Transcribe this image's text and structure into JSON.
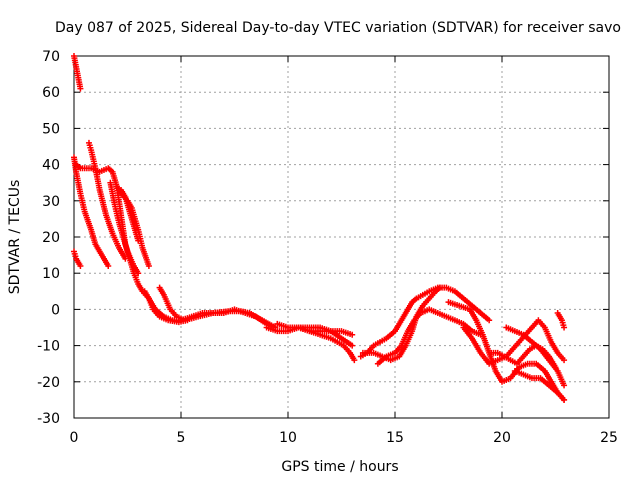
{
  "chart_data": {
    "type": "scatter",
    "title": "Day 087 of 2025, Sidereal Day-to-day VTEC variation (SDTVAR) for receiver savo",
    "xlabel": "GPS time / hours",
    "ylabel": "SDTVAR / TECUs",
    "xlim": [
      0,
      25
    ],
    "ylim": [
      -30,
      70
    ],
    "x_ticks": [
      "0",
      "5",
      "10",
      "15",
      "20",
      "25"
    ],
    "y_ticks": [
      "70",
      "60",
      "50",
      "40",
      "30",
      "20",
      "10",
      "0",
      "-10",
      "-20",
      "-30"
    ],
    "grid": true,
    "marker": "+",
    "color": "#ff0000",
    "series": [
      {
        "name": "s1",
        "x": [
          0.0,
          0.1,
          0.2,
          0.3
        ],
        "y": [
          70,
          67,
          64,
          61
        ]
      },
      {
        "name": "s2",
        "x": [
          0.0,
          0.1,
          0.2,
          0.3
        ],
        "y": [
          16,
          14,
          13,
          12
        ]
      },
      {
        "name": "s3",
        "x": [
          0.0,
          0.1,
          0.3,
          0.5,
          0.8,
          1.0,
          1.3,
          1.6
        ],
        "y": [
          42,
          38,
          32,
          27,
          22,
          18,
          15,
          12
        ]
      },
      {
        "name": "s4",
        "x": [
          0.1,
          0.3,
          0.8,
          1.2,
          1.6,
          1.8,
          2.0,
          2.2,
          2.4,
          2.6,
          2.8,
          3.0,
          3.2,
          3.5,
          3.8,
          4.2,
          4.6,
          5.0,
          5.5,
          6.0,
          6.5,
          7.0,
          7.5,
          8.0,
          8.5,
          9.0
        ],
        "y": [
          40,
          39,
          39,
          38,
          39,
          38,
          34,
          26,
          18,
          14,
          10,
          7,
          5,
          3,
          0,
          -2,
          -3,
          -3,
          -2,
          -1,
          -1,
          -1,
          0,
          -1,
          -2,
          -4
        ]
      },
      {
        "name": "s5",
        "x": [
          0.7,
          0.8,
          1.0,
          1.2,
          1.5,
          1.8,
          2.1,
          2.4
        ],
        "y": [
          46,
          44,
          39,
          33,
          26,
          21,
          17,
          14
        ]
      },
      {
        "name": "s6",
        "x": [
          1.7,
          1.9,
          2.1,
          2.3,
          2.5,
          2.8,
          3.0
        ],
        "y": [
          35,
          29,
          24,
          20,
          16,
          12,
          10
        ]
      },
      {
        "name": "s7",
        "x": [
          2.0,
          2.2,
          2.5,
          2.7,
          3.0,
          3.2,
          3.5
        ],
        "y": [
          34,
          32,
          30,
          28,
          22,
          17,
          12
        ]
      },
      {
        "name": "s8",
        "x": [
          2.2,
          2.4,
          2.6,
          2.8,
          3.0
        ],
        "y": [
          33,
          31,
          27,
          23,
          19
        ]
      },
      {
        "name": "s9",
        "x": [
          3.3,
          3.5,
          3.7,
          4.0,
          4.4,
          4.9,
          5.3
        ],
        "y": [
          5,
          3,
          0,
          -2,
          -3,
          -3.5,
          -3
        ]
      },
      {
        "name": "s10",
        "x": [
          4.0,
          4.2,
          4.5,
          4.8,
          5.2,
          5.8,
          6.5,
          7.2,
          7.8,
          8.2,
          8.8,
          9.4
        ],
        "y": [
          6,
          4,
          0,
          -2,
          -3,
          -2,
          -1,
          -0.5,
          -0.5,
          -1,
          -3,
          -5
        ]
      },
      {
        "name": "s11",
        "x": [
          9.0,
          9.5,
          10.0,
          10.5,
          11.0,
          11.5,
          12.0,
          12.3,
          12.6,
          12.9,
          13.1
        ],
        "y": [
          -5,
          -6,
          -6,
          -5,
          -6,
          -7,
          -8,
          -9,
          -10,
          -12,
          -14
        ]
      },
      {
        "name": "s12",
        "x": [
          9.5,
          10.0,
          10.5,
          11.0,
          11.5,
          12.0,
          12.5,
          13.0
        ],
        "y": [
          -4,
          -5,
          -5,
          -6,
          -6,
          -6,
          -8,
          -10
        ]
      },
      {
        "name": "s13",
        "x": [
          10.5,
          11.0,
          11.5,
          12.0,
          12.5,
          13.0
        ],
        "y": [
          -5,
          -5,
          -5,
          -6,
          -6,
          -7
        ]
      },
      {
        "name": "s14",
        "x": [
          13.4,
          13.7,
          14.0,
          14.3,
          14.6,
          15.0,
          15.3,
          15.6,
          15.8,
          16.0,
          16.3,
          16.6,
          17.0,
          17.4,
          17.8,
          18.2,
          18.6,
          19.0,
          19.4
        ],
        "y": [
          -13,
          -12,
          -10,
          -9,
          -8,
          -6,
          -3,
          0,
          2,
          3,
          4,
          5,
          6,
          6,
          5,
          3,
          1,
          -1,
          -3
        ]
      },
      {
        "name": "s15",
        "x": [
          13.5,
          14.0,
          14.4,
          14.8,
          15.2,
          15.5,
          15.8,
          16.0,
          16.3,
          16.6,
          16.9,
          17.1
        ],
        "y": [
          -12,
          -12,
          -13,
          -14,
          -13,
          -10,
          -6,
          -2,
          1,
          3,
          5,
          6
        ]
      },
      {
        "name": "s16",
        "x": [
          14.2,
          14.6,
          15.0,
          15.3,
          15.6,
          15.9,
          16.2,
          16.6,
          17.0,
          17.4,
          17.8,
          18.2,
          18.6,
          19.0
        ],
        "y": [
          -15,
          -13,
          -12,
          -10,
          -6,
          -3,
          -1,
          0,
          -1,
          -2,
          -3,
          -4,
          -6,
          -7
        ]
      },
      {
        "name": "s17",
        "x": [
          17.5,
          18.0,
          18.5,
          18.8,
          19.1,
          19.4,
          19.7,
          20.0,
          20.4,
          20.8,
          21.2,
          21.6,
          22.0,
          22.3,
          22.6,
          22.9
        ],
        "y": [
          2,
          1,
          0,
          -3,
          -7,
          -12,
          -17,
          -20,
          -19,
          -16,
          -15,
          -15,
          -17,
          -20,
          -23,
          -25
        ]
      },
      {
        "name": "s18",
        "x": [
          18.2,
          18.6,
          19.0,
          19.4,
          19.8,
          20.2,
          20.5,
          20.8,
          21.1,
          21.4,
          21.7,
          22.0,
          22.3,
          22.6,
          22.9
        ],
        "y": [
          -5,
          -8,
          -12,
          -15,
          -14,
          -13,
          -11,
          -9,
          -7,
          -5,
          -3,
          -5,
          -9,
          -12,
          -14
        ]
      },
      {
        "name": "s19",
        "x": [
          19.5,
          19.8,
          20.1,
          20.4,
          20.7,
          21.0,
          21.3,
          21.6,
          21.9,
          22.2,
          22.5
        ],
        "y": [
          -12,
          -12,
          -13,
          -14,
          -15,
          -13,
          -11,
          -10,
          -11,
          -13,
          -16
        ]
      },
      {
        "name": "s20",
        "x": [
          20.2,
          20.6,
          21.0,
          21.4,
          21.8,
          22.2,
          22.6,
          22.9
        ],
        "y": [
          -5,
          -6,
          -7,
          -9,
          -11,
          -14,
          -17,
          -21
        ]
      },
      {
        "name": "s21",
        "x": [
          20.6,
          21.0,
          21.4,
          21.8,
          22.2,
          22.6,
          22.9
        ],
        "y": [
          -17,
          -18,
          -19,
          -19,
          -21,
          -23,
          -25
        ]
      },
      {
        "name": "s22",
        "x": [
          22.6,
          22.7,
          22.8,
          22.9
        ],
        "y": [
          -1,
          -2,
          -3,
          -5
        ]
      }
    ]
  }
}
